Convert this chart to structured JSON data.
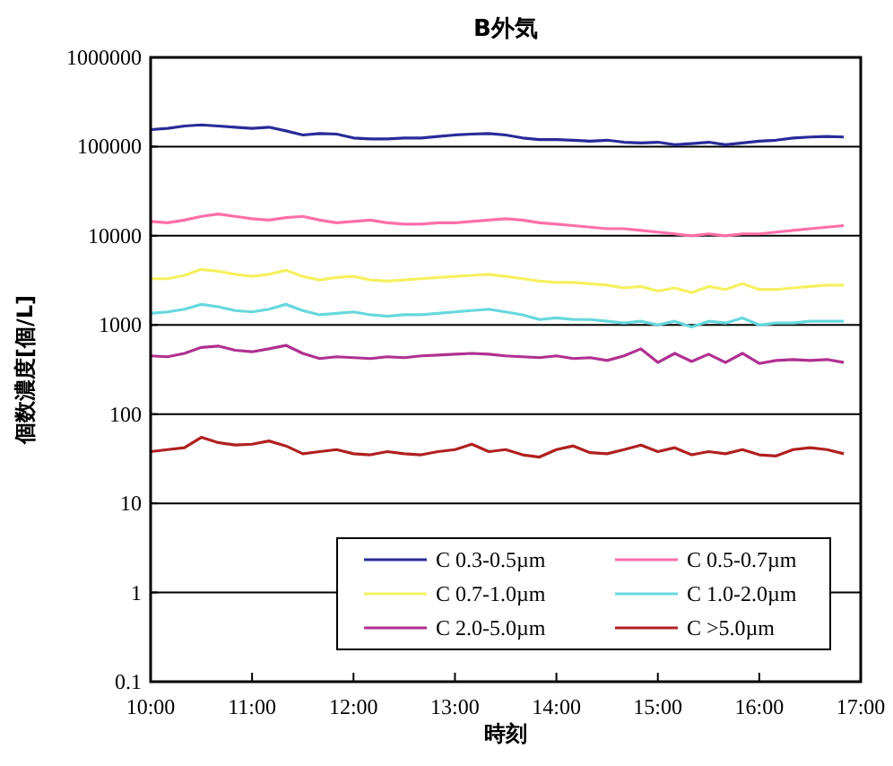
{
  "chart_data": {
    "type": "line",
    "title": "B外気",
    "xlabel": "時刻",
    "ylabel": "個数濃度[個/L]",
    "log": "y",
    "grid": "y",
    "legend": "bottom right",
    "marker": "none",
    "line_style": "solid",
    "x": [
      10,
      10.1667,
      10.3333,
      10.5,
      10.6667,
      10.8333,
      11,
      11.1667,
      11.3333,
      11.5,
      11.6667,
      11.8333,
      12,
      12.1667,
      12.3333,
      12.5,
      12.6667,
      12.8333,
      13,
      13.1667,
      13.3333,
      13.5,
      13.6667,
      13.8333,
      14,
      14.1667,
      14.3333,
      14.5,
      14.6667,
      14.8333,
      15,
      15.1667,
      15.3333,
      15.5,
      15.6667,
      15.8333,
      16,
      16.1667,
      16.3333,
      16.5,
      16.6667,
      16.8333
    ],
    "xlim": [
      10,
      17
    ],
    "xticks": [
      {
        "value": 10,
        "label": "10:00"
      },
      {
        "value": 11,
        "label": "11:00"
      },
      {
        "value": 12,
        "label": "12:00"
      },
      {
        "value": 13,
        "label": "13:00"
      },
      {
        "value": 14,
        "label": "14:00"
      },
      {
        "value": 15,
        "label": "15:00"
      },
      {
        "value": 16,
        "label": "16:00"
      },
      {
        "value": 17,
        "label": "17:00"
      }
    ],
    "ylim": [
      0.1,
      1000000
    ],
    "yticks": [
      0.1,
      1,
      10,
      100,
      1000,
      10000,
      100000,
      1000000
    ],
    "series": [
      {
        "name": "C 0.3-0.5µm",
        "color": "#2a2a9a",
        "values": [
          155000,
          160000,
          170000,
          175000,
          170000,
          165000,
          160000,
          165000,
          150000,
          135000,
          140000,
          138000,
          125000,
          122000,
          122000,
          125000,
          125000,
          130000,
          135000,
          138000,
          140000,
          135000,
          125000,
          120000,
          120000,
          118000,
          115000,
          118000,
          112000,
          110000,
          112000,
          105000,
          108000,
          112000,
          105000,
          110000,
          115000,
          118000,
          125000,
          128000,
          130000,
          128000
        ]
      },
      {
        "name": "C 0.5-0.7µm",
        "color": "#ff6fa8",
        "values": [
          14500,
          14000,
          15000,
          16500,
          17500,
          16500,
          15500,
          15000,
          16000,
          16500,
          15000,
          14000,
          14500,
          15000,
          14000,
          13500,
          13500,
          14000,
          14000,
          14500,
          15000,
          15500,
          15000,
          14000,
          13500,
          13000,
          12500,
          12000,
          12000,
          11500,
          11000,
          10500,
          10000,
          10500,
          10000,
          10500,
          10500,
          11000,
          11500,
          12000,
          12500,
          13000
        ]
      },
      {
        "name": "C 0.7-1.0µm",
        "color": "#f5f060",
        "values": [
          3300,
          3300,
          3600,
          4200,
          4000,
          3700,
          3500,
          3700,
          4100,
          3500,
          3200,
          3400,
          3500,
          3200,
          3100,
          3200,
          3300,
          3400,
          3500,
          3600,
          3700,
          3500,
          3300,
          3100,
          3000,
          3000,
          2900,
          2800,
          2600,
          2700,
          2400,
          2600,
          2300,
          2700,
          2500,
          2900,
          2500,
          2500,
          2600,
          2700,
          2800,
          2800
        ]
      },
      {
        "name": "C 1.0-2.0µm",
        "color": "#66d8dd",
        "values": [
          1350,
          1400,
          1500,
          1700,
          1600,
          1450,
          1400,
          1500,
          1700,
          1450,
          1300,
          1350,
          1400,
          1300,
          1250,
          1300,
          1300,
          1350,
          1400,
          1450,
          1500,
          1400,
          1300,
          1150,
          1200,
          1150,
          1150,
          1100,
          1050,
          1100,
          1000,
          1100,
          950,
          1100,
          1050,
          1200,
          1000,
          1050,
          1050,
          1100,
          1100,
          1100
        ]
      },
      {
        "name": "C 2.0-5.0µm",
        "color": "#b03090",
        "values": [
          450,
          440,
          480,
          560,
          580,
          520,
          500,
          540,
          590,
          480,
          420,
          440,
          430,
          420,
          440,
          430,
          450,
          460,
          470,
          480,
          470,
          450,
          440,
          430,
          450,
          420,
          430,
          400,
          450,
          540,
          380,
          480,
          390,
          470,
          380,
          480,
          370,
          400,
          410,
          400,
          410,
          380
        ]
      },
      {
        "name": "C >5.0µm",
        "color": "#b02020",
        "values": [
          38,
          40,
          42,
          55,
          48,
          45,
          46,
          50,
          44,
          36,
          38,
          40,
          36,
          35,
          38,
          36,
          35,
          38,
          40,
          46,
          38,
          40,
          35,
          33,
          40,
          44,
          37,
          36,
          40,
          45,
          38,
          42,
          35,
          38,
          36,
          40,
          35,
          34,
          40,
          42,
          40,
          36
        ]
      }
    ]
  }
}
